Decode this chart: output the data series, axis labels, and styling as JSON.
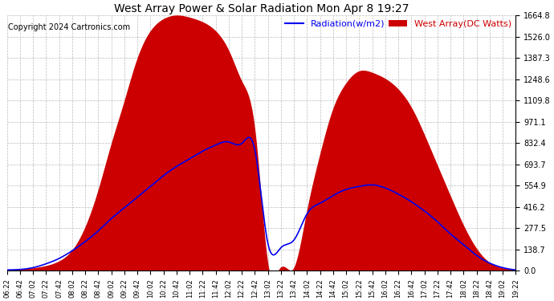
{
  "title": "West Array Power & Solar Radiation Mon Apr 8 19:27",
  "copyright": "Copyright 2024 Cartronics.com",
  "legend_radiation": "Radiation(w/m2)",
  "legend_west_array": "West Array(DC Watts)",
  "background_color": "#ffffff",
  "plot_bg_color": "#ffffff",
  "grid_color": "#bbbbbb",
  "red_fill_color": "#cc0000",
  "blue_line_color": "#0000ee",
  "ymin": 0.0,
  "ymax": 1664.8,
  "yticks": [
    0.0,
    138.7,
    277.5,
    416.2,
    554.9,
    693.7,
    832.4,
    971.1,
    1109.8,
    1248.6,
    1387.3,
    1526.0,
    1664.8
  ],
  "time_labels": [
    "06:22",
    "06:42",
    "07:02",
    "07:22",
    "07:42",
    "08:02",
    "08:22",
    "08:42",
    "09:02",
    "09:22",
    "09:42",
    "10:02",
    "10:22",
    "10:42",
    "11:02",
    "11:22",
    "11:42",
    "12:02",
    "12:22",
    "12:42",
    "13:02",
    "13:22",
    "13:42",
    "14:02",
    "14:22",
    "14:42",
    "15:02",
    "15:22",
    "15:42",
    "16:02",
    "16:22",
    "16:42",
    "17:02",
    "17:22",
    "17:42",
    "18:02",
    "18:22",
    "18:42",
    "19:02",
    "19:22"
  ],
  "west_array_x": [
    0,
    1,
    2,
    3,
    4,
    5,
    6,
    7,
    8,
    9,
    10,
    11,
    12,
    13,
    14,
    15,
    16,
    17,
    18,
    19,
    20,
    21,
    22,
    23,
    24,
    25,
    26,
    27,
    28,
    29,
    30,
    31,
    32,
    33,
    34,
    35,
    36,
    37,
    38,
    39
  ],
  "west_array_y": [
    5,
    8,
    15,
    30,
    60,
    130,
    280,
    520,
    820,
    1100,
    1380,
    1560,
    1640,
    1664,
    1650,
    1620,
    1560,
    1430,
    1230,
    900,
    30,
    20,
    15,
    380,
    750,
    1050,
    1220,
    1300,
    1290,
    1250,
    1180,
    1060,
    880,
    680,
    480,
    290,
    140,
    50,
    15,
    5
  ],
  "radiation_x": [
    0,
    1,
    2,
    3,
    4,
    5,
    6,
    7,
    8,
    9,
    10,
    11,
    12,
    13,
    14,
    15,
    16,
    17,
    18,
    19,
    20,
    21,
    22,
    23,
    24,
    25,
    26,
    27,
    28,
    29,
    30,
    31,
    32,
    33,
    34,
    35,
    36,
    37,
    38,
    39
  ],
  "radiation_y": [
    5,
    8,
    20,
    45,
    80,
    130,
    190,
    260,
    340,
    410,
    480,
    550,
    620,
    680,
    730,
    780,
    820,
    840,
    830,
    790,
    180,
    150,
    200,
    370,
    440,
    490,
    530,
    550,
    560,
    540,
    500,
    450,
    390,
    320,
    240,
    170,
    100,
    50,
    20,
    5
  ]
}
